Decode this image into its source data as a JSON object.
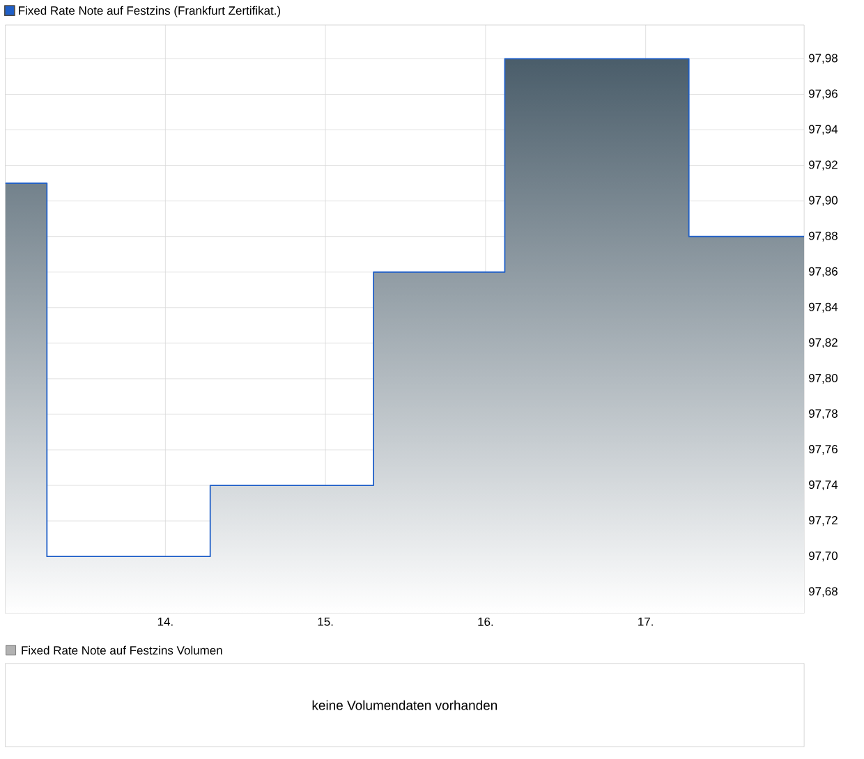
{
  "chart_data": [
    {
      "type": "step",
      "legend": "top left",
      "grid": true,
      "x": [
        13.0,
        13.26,
        14.28,
        15.3,
        16.12,
        17.27,
        17.99
      ],
      "series": [
        {
          "name": "Fixed Rate Note auf Festzins (Frankfurt Zertifikat.)",
          "color": "#1f5fc8",
          "values": [
            97.91,
            97.7,
            97.74,
            97.86,
            97.98,
            97.88,
            97.88
          ]
        }
      ],
      "xlim": [
        13.0,
        17.99
      ],
      "ylim": [
        97.668,
        97.999
      ],
      "xticks": [
        {
          "value": 14,
          "label": "14."
        },
        {
          "value": 15,
          "label": "15."
        },
        {
          "value": 16,
          "label": "16."
        },
        {
          "value": 17,
          "label": "17."
        }
      ],
      "yticks": [
        {
          "value": 97.68,
          "label": "97,68"
        },
        {
          "value": 97.7,
          "label": "97,70"
        },
        {
          "value": 97.72,
          "label": "97,72"
        },
        {
          "value": 97.74,
          "label": "97,74"
        },
        {
          "value": 97.76,
          "label": "97,76"
        },
        {
          "value": 97.78,
          "label": "97,78"
        },
        {
          "value": 97.8,
          "label": "97,80"
        },
        {
          "value": 97.82,
          "label": "97,82"
        },
        {
          "value": 97.84,
          "label": "97,84"
        },
        {
          "value": 97.86,
          "label": "97,86"
        },
        {
          "value": 97.88,
          "label": "97,88"
        },
        {
          "value": 97.9,
          "label": "97,90"
        },
        {
          "value": 97.92,
          "label": "97,92"
        },
        {
          "value": 97.94,
          "label": "97,94"
        },
        {
          "value": 97.96,
          "label": "97,96"
        },
        {
          "value": 97.98,
          "label": "97,98"
        }
      ]
    },
    {
      "type": "other",
      "title": "Fixed Rate Note auf Festzins Volumen",
      "annotations": [
        "keine Volumendaten vorhanden"
      ]
    }
  ]
}
